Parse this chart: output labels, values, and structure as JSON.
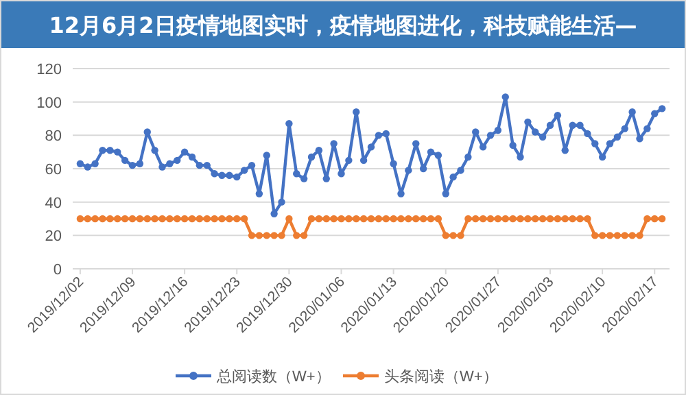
{
  "chart_data": {
    "type": "line",
    "title": "12月6月2日疫情地图实时，疫情地图进化，科技赋能生活—",
    "x": [
      "2019-12-02",
      "2019-12-03",
      "2019-12-04",
      "2019-12-05",
      "2019-12-06",
      "2019-12-07",
      "2019-12-08",
      "2019-12-09",
      "2019-12-10",
      "2019-12-11",
      "2019-12-12",
      "2019-12-13",
      "2019-12-14",
      "2019-12-15",
      "2019-12-16",
      "2019-12-17",
      "2019-12-18",
      "2019-12-19",
      "2019-12-20",
      "2019-12-21",
      "2019-12-22",
      "2019-12-23",
      "2019-12-24",
      "2019-12-25",
      "2019-12-26",
      "2019-12-27",
      "2019-12-28",
      "2019-12-29",
      "2019-12-30",
      "2019-12-31",
      "2020-01-01",
      "2020-01-02",
      "2020-01-03",
      "2020-01-04",
      "2020-01-05",
      "2020-01-06",
      "2020-01-07",
      "2020-01-08",
      "2020-01-09",
      "2020-01-10",
      "2020-01-11",
      "2020-01-12",
      "2020-01-13",
      "2020-01-14",
      "2020-01-15",
      "2020-01-16",
      "2020-01-17",
      "2020-01-18",
      "2020-01-19",
      "2020-01-20",
      "2020-01-21",
      "2020-01-22",
      "2020-01-23",
      "2020-01-24",
      "2020-01-25",
      "2020-01-26",
      "2020-01-27",
      "2020-01-28",
      "2020-01-29",
      "2020-01-30",
      "2020-01-31",
      "2020-02-01",
      "2020-02-02",
      "2020-02-03",
      "2020-02-04",
      "2020-02-05",
      "2020-02-06",
      "2020-02-07",
      "2020-02-08",
      "2020-02-09",
      "2020-02-10",
      "2020-02-11",
      "2020-02-12",
      "2020-02-13",
      "2020-02-14",
      "2020-02-15",
      "2020-02-16",
      "2020-02-17",
      "2020-02-18"
    ],
    "series": [
      {
        "name": "总阅读数（W+）",
        "color": "#4472c4",
        "values": [
          63,
          61,
          63,
          71,
          71,
          70,
          65,
          62,
          63,
          82,
          71,
          61,
          63,
          65,
          70,
          67,
          62,
          62,
          57,
          56,
          56,
          55,
          59,
          62,
          45,
          68,
          33,
          40,
          87,
          57,
          54,
          67,
          71,
          54,
          75,
          57,
          65,
          94,
          65,
          73,
          80,
          81,
          63,
          45,
          59,
          75,
          60,
          70,
          68,
          45,
          55,
          59,
          67,
          82,
          73,
          80,
          83,
          103,
          74,
          67,
          88,
          82,
          79,
          86,
          92,
          71,
          86,
          86,
          81,
          75,
          67,
          75,
          79,
          84,
          94,
          78,
          84,
          93,
          96
        ]
      },
      {
        "name": "头条阅读（W+）",
        "color": "#ed7d31",
        "values": [
          30,
          30,
          30,
          30,
          30,
          30,
          30,
          30,
          30,
          30,
          30,
          30,
          30,
          30,
          30,
          30,
          30,
          30,
          30,
          30,
          30,
          30,
          30,
          20,
          20,
          20,
          20,
          20,
          30,
          20,
          20,
          30,
          30,
          30,
          30,
          30,
          30,
          30,
          30,
          30,
          30,
          30,
          30,
          30,
          30,
          30,
          30,
          30,
          30,
          20,
          20,
          20,
          30,
          30,
          30,
          30,
          30,
          30,
          30,
          30,
          30,
          30,
          30,
          30,
          30,
          30,
          30,
          30,
          30,
          20,
          20,
          20,
          20,
          20,
          20,
          20,
          30,
          30,
          30
        ]
      }
    ],
    "xlim": [
      "2019-12-01",
      "2020-02-19"
    ],
    "xticks": [
      {
        "value": "2019-12-02",
        "label": "2019/12/02"
      },
      {
        "value": "2019-12-09",
        "label": "2019/12/09"
      },
      {
        "value": "2019-12-16",
        "label": "2019/12/16"
      },
      {
        "value": "2019-12-23",
        "label": "2019/12/23"
      },
      {
        "value": "2019-12-30",
        "label": "2019/12/30"
      },
      {
        "value": "2020-01-06",
        "label": "2020/01/06"
      },
      {
        "value": "2020-01-13",
        "label": "2020/01/13"
      },
      {
        "value": "2020-01-20",
        "label": "2020/01/20"
      },
      {
        "value": "2020-01-27",
        "label": "2020/01/27"
      },
      {
        "value": "2020-02-03",
        "label": "2020/02/03"
      },
      {
        "value": "2020-02-10",
        "label": "2020/02/10"
      },
      {
        "value": "2020-02-17",
        "label": "2020/02/17"
      }
    ],
    "ylim": [
      0,
      120
    ],
    "yticks": [
      0,
      20,
      40,
      60,
      80,
      100,
      120
    ],
    "grid": "y",
    "legend": "bottom",
    "marker": "circle",
    "line_style": "solid"
  }
}
